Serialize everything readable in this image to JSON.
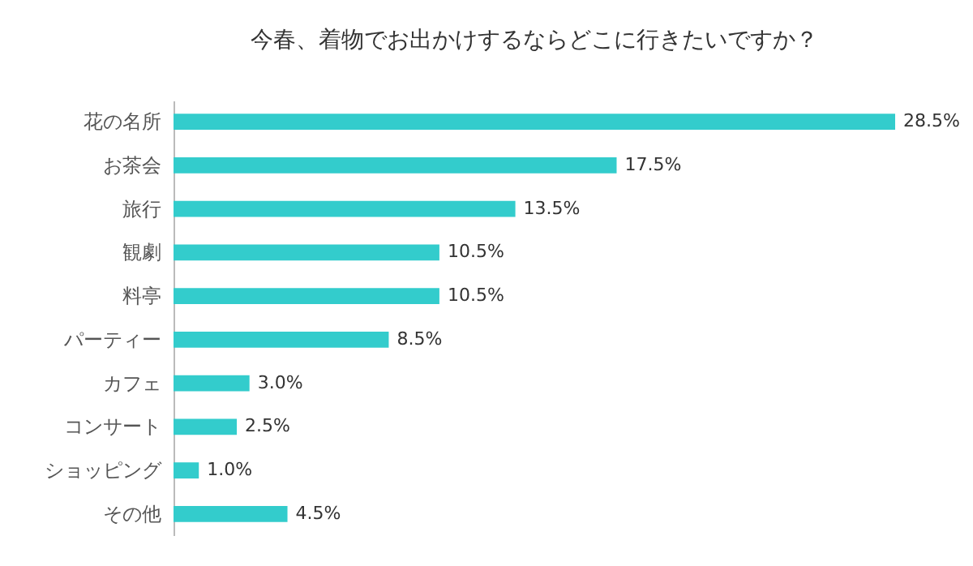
{
  "chart_data": {
    "type": "bar",
    "orientation": "horizontal",
    "title": "今春、着物でお出かけするならどこに行きたいですか？",
    "categories": [
      "花の名所",
      "お茶会",
      "旅行",
      "観劇",
      "料亭",
      "パーティー",
      "カフェ",
      "コンサート",
      "ショッピング",
      "その他"
    ],
    "values": [
      28.5,
      17.5,
      13.5,
      10.5,
      10.5,
      8.5,
      3.0,
      2.5,
      1.0,
      4.5
    ],
    "value_labels": [
      "28.5%",
      "17.5%",
      "13.5%",
      "10.5%",
      "10.5%",
      "8.5%",
      "3.0%",
      "2.5%",
      "1.0%",
      "4.5%"
    ],
    "color": "#33cccc"
  }
}
